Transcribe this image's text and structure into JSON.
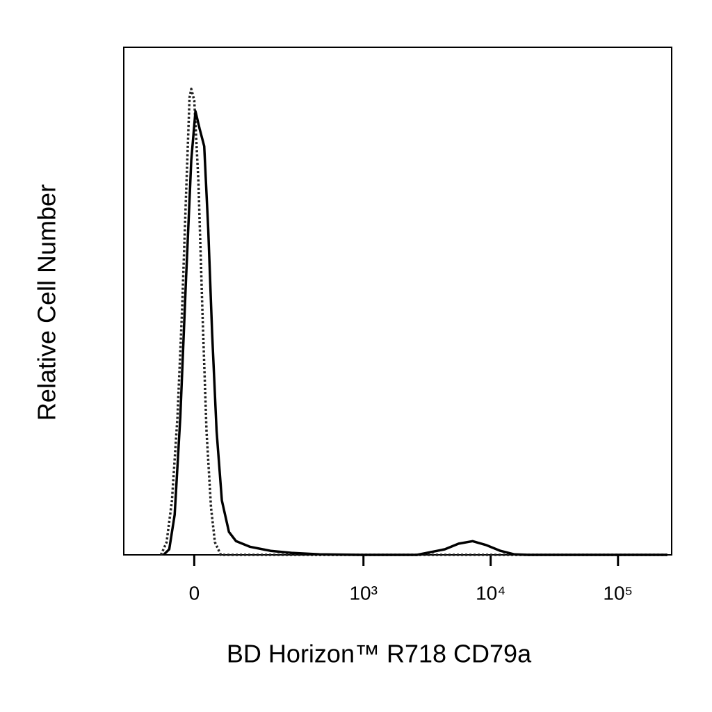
{
  "chart_data": {
    "type": "line",
    "xlabel": "BD Horizon™ R718  CD79a",
    "ylabel": "Relative Cell Number",
    "xscale": "biexponential",
    "xlim": [
      -155,
      264000
    ],
    "ylim": [
      0,
      100
    ],
    "xticks": [
      0,
      {
        "value": 1000,
        "label": "10³"
      },
      {
        "value": 10000,
        "label": "10⁴"
      },
      {
        "value": 100000,
        "label": "10⁵"
      }
    ],
    "series": [
      {
        "color": "#222222",
        "style": "dotted",
        "x": [
          -60,
          -49,
          -39,
          -29,
          -21,
          -14,
          -8,
          -5,
          0,
          7,
          14,
          21,
          29,
          36,
          47,
          244000
        ],
        "values": [
          0,
          2.5,
          10.7,
          27.1,
          47.7,
          71.0,
          90.1,
          91.8,
          89.5,
          73.7,
          47.7,
          24.4,
          9.3,
          2.5,
          0,
          0
        ]
      },
      {
        "color": "#000000",
        "style": "solid",
        "x": [
          -55,
          -44,
          -34,
          -24,
          -14,
          -5,
          2,
          9,
          17,
          24,
          31,
          39,
          49,
          63,
          78,
          111,
          175,
          265,
          448,
          961,
          2637,
          4360,
          5600,
          7210,
          9280,
          11930,
          15350,
          19740,
          244000
        ],
        "values": [
          0,
          1.1,
          7.9,
          27.1,
          54.5,
          77.8,
          87.4,
          84.0,
          80.5,
          64.1,
          43.6,
          24.4,
          10.7,
          4.5,
          2.7,
          1.6,
          0.8,
          0.4,
          0.1,
          0,
          0,
          1.1,
          2.2,
          2.7,
          1.9,
          0.8,
          0.1,
          0,
          0
        ]
      }
    ]
  }
}
